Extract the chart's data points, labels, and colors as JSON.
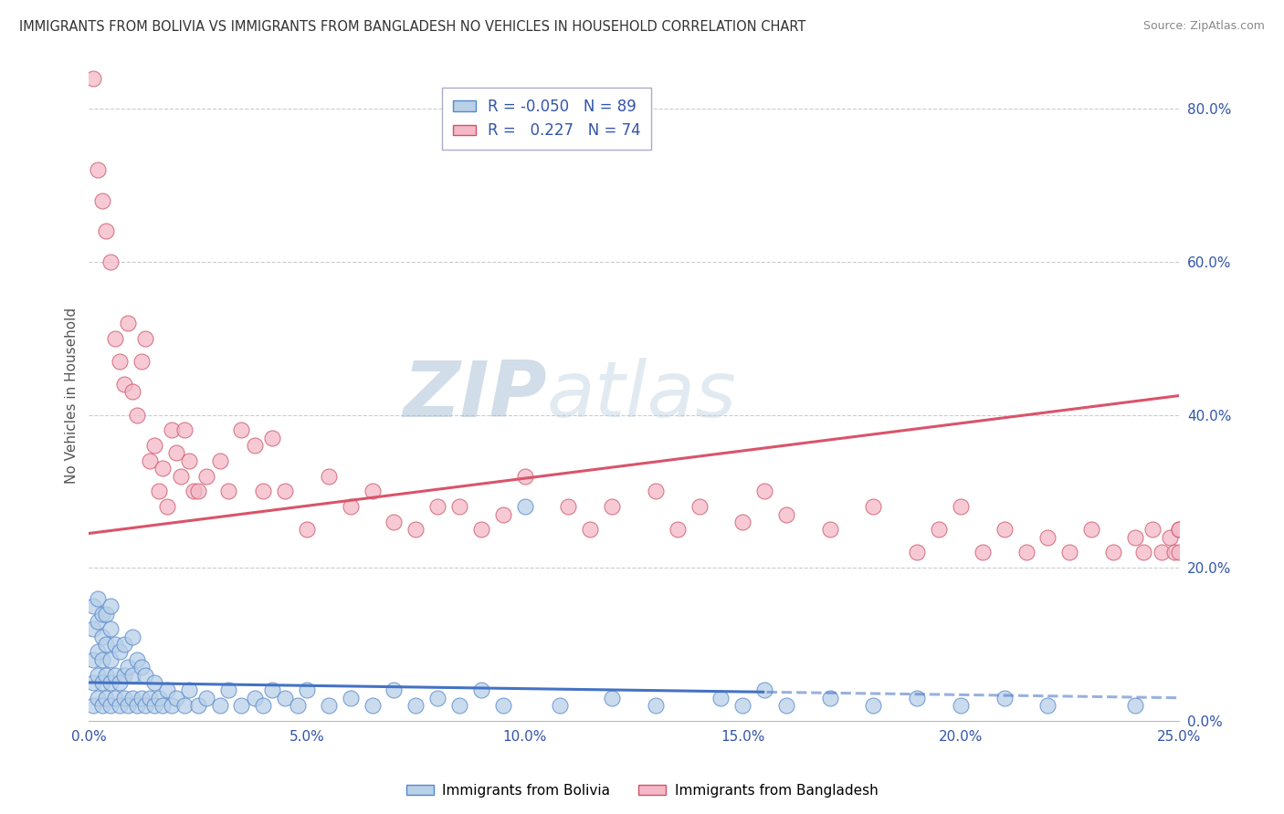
{
  "title": "IMMIGRANTS FROM BOLIVIA VS IMMIGRANTS FROM BANGLADESH NO VEHICLES IN HOUSEHOLD CORRELATION CHART",
  "source": "Source: ZipAtlas.com",
  "ylabel": "No Vehicles in Household",
  "xlim": [
    0.0,
    0.25
  ],
  "ylim": [
    0.0,
    0.85
  ],
  "xticks": [
    0.0,
    0.05,
    0.1,
    0.15,
    0.2,
    0.25
  ],
  "yticks_right": [
    0.0,
    0.2,
    0.4,
    0.6,
    0.8
  ],
  "bolivia_R": -0.05,
  "bolivia_N": 89,
  "bangladesh_R": 0.227,
  "bangladesh_N": 74,
  "bolivia_color": "#b8d0e8",
  "bangladesh_color": "#f4b8c8",
  "bolivia_edge_color": "#5588cc",
  "bangladesh_edge_color": "#cc5566",
  "bolivia_line_color": "#4472c4",
  "bangladesh_line_color": "#d9546a",
  "background_color": "#ffffff",
  "grid_color": "#cccccc",
  "watermark_zip": "ZIP",
  "watermark_atlas": "atlas",
  "bolivia_scatter_x": [
    0.001,
    0.001,
    0.001,
    0.001,
    0.001,
    0.002,
    0.002,
    0.002,
    0.002,
    0.002,
    0.003,
    0.003,
    0.003,
    0.003,
    0.003,
    0.004,
    0.004,
    0.004,
    0.004,
    0.005,
    0.005,
    0.005,
    0.005,
    0.005,
    0.006,
    0.006,
    0.006,
    0.007,
    0.007,
    0.007,
    0.008,
    0.008,
    0.008,
    0.009,
    0.009,
    0.01,
    0.01,
    0.01,
    0.011,
    0.011,
    0.012,
    0.012,
    0.013,
    0.013,
    0.014,
    0.015,
    0.015,
    0.016,
    0.017,
    0.018,
    0.019,
    0.02,
    0.022,
    0.023,
    0.025,
    0.027,
    0.03,
    0.032,
    0.035,
    0.038,
    0.04,
    0.042,
    0.045,
    0.048,
    0.05,
    0.055,
    0.06,
    0.065,
    0.07,
    0.075,
    0.08,
    0.085,
    0.09,
    0.095,
    0.1,
    0.108,
    0.12,
    0.13,
    0.145,
    0.15,
    0.155,
    0.16,
    0.17,
    0.18,
    0.19,
    0.2,
    0.21,
    0.22,
    0.24
  ],
  "bolivia_scatter_y": [
    0.02,
    0.05,
    0.08,
    0.12,
    0.15,
    0.03,
    0.06,
    0.09,
    0.13,
    0.16,
    0.02,
    0.05,
    0.08,
    0.11,
    0.14,
    0.03,
    0.06,
    0.1,
    0.14,
    0.02,
    0.05,
    0.08,
    0.12,
    0.15,
    0.03,
    0.06,
    0.1,
    0.02,
    0.05,
    0.09,
    0.03,
    0.06,
    0.1,
    0.02,
    0.07,
    0.03,
    0.06,
    0.11,
    0.02,
    0.08,
    0.03,
    0.07,
    0.02,
    0.06,
    0.03,
    0.02,
    0.05,
    0.03,
    0.02,
    0.04,
    0.02,
    0.03,
    0.02,
    0.04,
    0.02,
    0.03,
    0.02,
    0.04,
    0.02,
    0.03,
    0.02,
    0.04,
    0.03,
    0.02,
    0.04,
    0.02,
    0.03,
    0.02,
    0.04,
    0.02,
    0.03,
    0.02,
    0.04,
    0.02,
    0.28,
    0.02,
    0.03,
    0.02,
    0.03,
    0.02,
    0.04,
    0.02,
    0.03,
    0.02,
    0.03,
    0.02,
    0.03,
    0.02,
    0.02
  ],
  "bangladesh_scatter_x": [
    0.001,
    0.002,
    0.003,
    0.004,
    0.005,
    0.006,
    0.007,
    0.008,
    0.009,
    0.01,
    0.011,
    0.012,
    0.013,
    0.014,
    0.015,
    0.016,
    0.017,
    0.018,
    0.019,
    0.02,
    0.021,
    0.022,
    0.023,
    0.024,
    0.025,
    0.027,
    0.03,
    0.032,
    0.035,
    0.038,
    0.04,
    0.042,
    0.045,
    0.05,
    0.055,
    0.06,
    0.065,
    0.07,
    0.075,
    0.08,
    0.085,
    0.09,
    0.095,
    0.1,
    0.11,
    0.115,
    0.12,
    0.13,
    0.135,
    0.14,
    0.15,
    0.155,
    0.16,
    0.17,
    0.18,
    0.19,
    0.195,
    0.2,
    0.205,
    0.21,
    0.215,
    0.22,
    0.225,
    0.23,
    0.235,
    0.24,
    0.242,
    0.244,
    0.246,
    0.248,
    0.249,
    0.25,
    0.25,
    0.25
  ],
  "bangladesh_scatter_y": [
    0.84,
    0.72,
    0.68,
    0.64,
    0.6,
    0.5,
    0.47,
    0.44,
    0.52,
    0.43,
    0.4,
    0.47,
    0.5,
    0.34,
    0.36,
    0.3,
    0.33,
    0.28,
    0.38,
    0.35,
    0.32,
    0.38,
    0.34,
    0.3,
    0.3,
    0.32,
    0.34,
    0.3,
    0.38,
    0.36,
    0.3,
    0.37,
    0.3,
    0.25,
    0.32,
    0.28,
    0.3,
    0.26,
    0.25,
    0.28,
    0.28,
    0.25,
    0.27,
    0.32,
    0.28,
    0.25,
    0.28,
    0.3,
    0.25,
    0.28,
    0.26,
    0.3,
    0.27,
    0.25,
    0.28,
    0.22,
    0.25,
    0.28,
    0.22,
    0.25,
    0.22,
    0.24,
    0.22,
    0.25,
    0.22,
    0.24,
    0.22,
    0.25,
    0.22,
    0.24,
    0.22,
    0.25,
    0.22,
    0.25
  ],
  "bolivia_line_intercept": 0.05,
  "bolivia_line_slope": -0.08,
  "bolivia_line_solid_end": 0.155,
  "bangladesh_line_intercept": 0.245,
  "bangladesh_line_slope": 0.72
}
